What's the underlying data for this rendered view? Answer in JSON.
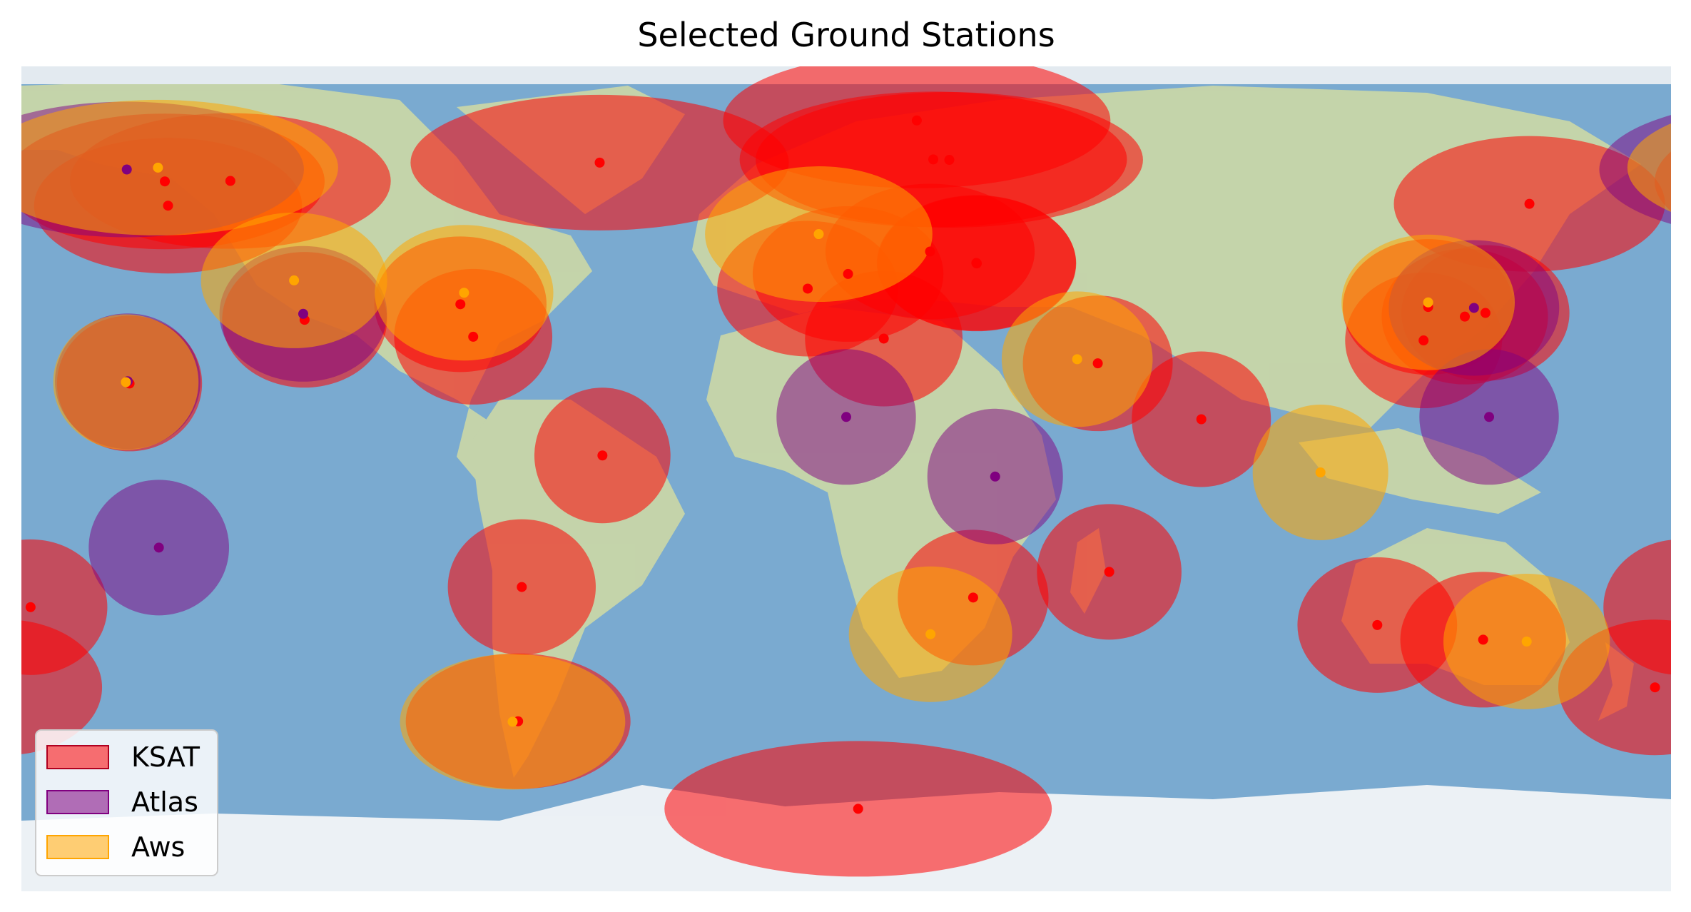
{
  "chart_data": {
    "type": "map",
    "title": "Selected Ground Stations",
    "map_extent": {
      "lon": [
        -180,
        180
      ],
      "lat": [
        -90,
        90
      ]
    },
    "projection": "equirectangular",
    "legend_placement": "lower-left",
    "colors": {
      "KSAT": "#ff0000",
      "Atlas": "#800080",
      "Aws": "#ffa500",
      "ocean": "#7aaad0",
      "land": "#c8d6a8",
      "ice": "#f2f4f7"
    },
    "series": [
      {
        "name": "KSAT",
        "stations": [
          {
            "lon": -148.7,
            "lat": 64.9
          },
          {
            "lon": -148.0,
            "lat": 59.6
          },
          {
            "lon": -134.4,
            "lat": 65.0
          },
          {
            "lon": -118.2,
            "lat": 34.7
          },
          {
            "lon": -156.4,
            "lat": 20.8
          },
          {
            "lon": -84.2,
            "lat": 38.1
          },
          {
            "lon": -81.4,
            "lat": 31.0
          },
          {
            "lon": -53.8,
            "lat": 69.0
          },
          {
            "lon": -53.2,
            "lat": 5.1
          },
          {
            "lon": -70.8,
            "lat": -23.6
          },
          {
            "lon": -71.6,
            "lat": -52.9
          },
          {
            "lon": -8.4,
            "lat": 41.5
          },
          {
            "lon": 0.4,
            "lat": 44.7
          },
          {
            "lon": 8.2,
            "lat": 30.6
          },
          {
            "lon": 15.4,
            "lat": 78.2
          },
          {
            "lon": 19.0,
            "lat": 69.7
          },
          {
            "lon": 22.5,
            "lat": 69.6
          },
          {
            "lon": 18.3,
            "lat": 49.6
          },
          {
            "lon": 28.5,
            "lat": 47.0
          },
          {
            "lon": 28.4,
            "lat": 47.1
          },
          {
            "lon": 27.7,
            "lat": -25.9
          },
          {
            "lon": 57.4,
            "lat": -20.3
          },
          {
            "lon": 54.9,
            "lat": 25.2
          },
          {
            "lon": 77.5,
            "lat": 13.0
          },
          {
            "lon": 115.9,
            "lat": -31.9
          },
          {
            "lon": 139.0,
            "lat": -35.1
          },
          {
            "lon": 149.1,
            "lat": 60.0
          },
          {
            "lon": 135.0,
            "lat": 35.4
          },
          {
            "lon": 139.5,
            "lat": 36.2
          },
          {
            "lon": 127.0,
            "lat": 37.5
          },
          {
            "lon": 126.0,
            "lat": 30.2
          },
          {
            "lon": 176.5,
            "lat": -45.5
          },
          {
            "lon": 2.6,
            "lat": -72.0
          },
          {
            "lon": -178.0,
            "lat": -28.0
          }
        ]
      },
      {
        "name": "Atlas",
        "stations": [
          {
            "lon": -157.0,
            "lat": 67.5
          },
          {
            "lon": -118.5,
            "lat": 36.0
          },
          {
            "lon": -156.8,
            "lat": 21.3
          },
          {
            "lon": -150.0,
            "lat": -15.0
          },
          {
            "lon": 0.0,
            "lat": 13.5
          },
          {
            "lon": 32.5,
            "lat": 0.5
          },
          {
            "lon": 137.0,
            "lat": 37.3
          },
          {
            "lon": 140.3,
            "lat": 13.5
          }
        ]
      },
      {
        "name": "Aws",
        "stations": [
          {
            "lon": -150.2,
            "lat": 67.9
          },
          {
            "lon": -120.5,
            "lat": 43.3
          },
          {
            "lon": -83.4,
            "lat": 40.6
          },
          {
            "lon": -157.2,
            "lat": 21.1
          },
          {
            "lon": -72.8,
            "lat": -53.0
          },
          {
            "lon": -6.0,
            "lat": 53.4
          },
          {
            "lon": 50.4,
            "lat": 26.1
          },
          {
            "lon": 103.5,
            "lat": 1.4
          },
          {
            "lon": 127.0,
            "lat": 38.5
          },
          {
            "lon": 148.5,
            "lat": -35.5
          },
          {
            "lon": 18.4,
            "lat": -33.9
          }
        ]
      }
    ]
  }
}
